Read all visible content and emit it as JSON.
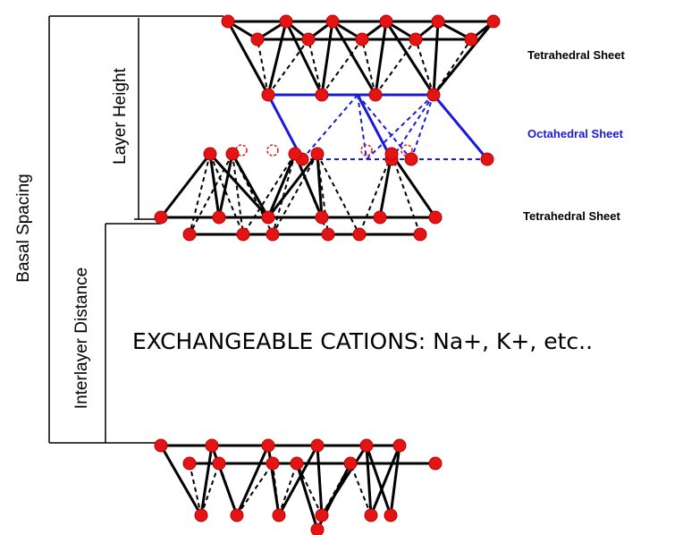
{
  "labels": {
    "basal_spacing": "Basal Spacing",
    "layer_height": "Layer Height",
    "interlayer_distance": "Interlayer Distance"
  },
  "sheets": [
    "Tetrahedral Sheet",
    "Octahedral Sheet",
    "Tetrahedral Sheet"
  ],
  "caption": "EXCHANGEABLE CATIONS: Na+, K+, etc.."
}
